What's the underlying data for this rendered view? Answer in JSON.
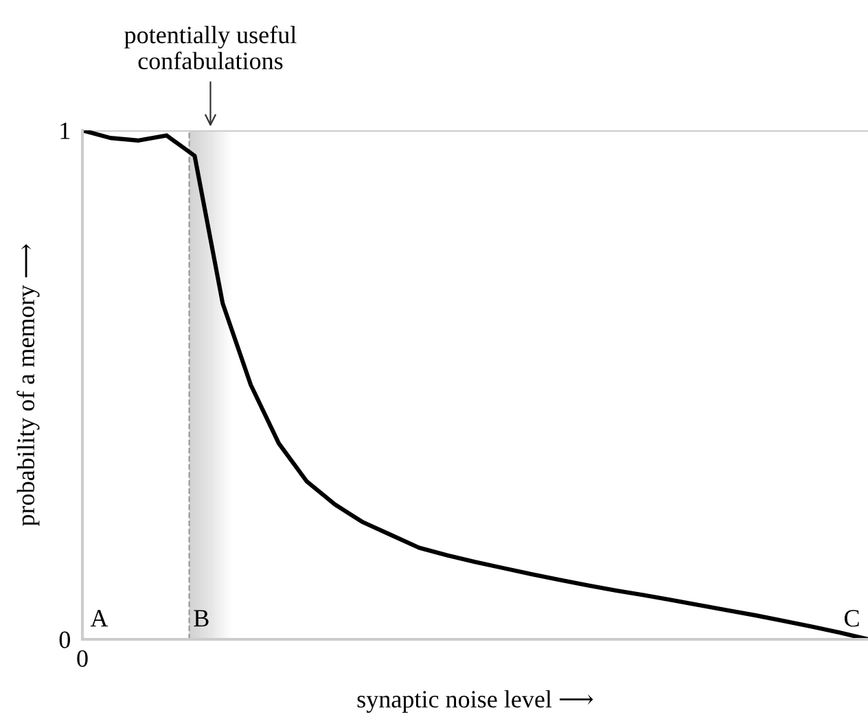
{
  "chart_data": {
    "type": "line",
    "xlabel": "synaptic noise level ⟶",
    "ylabel": "probability of a memory ⟶",
    "categories": [
      null,
      null,
      null,
      null,
      null,
      null,
      null,
      null,
      null,
      null,
      null,
      null,
      null,
      null,
      null,
      null,
      null,
      null,
      null,
      null,
      null,
      null,
      null,
      null,
      null,
      null,
      null,
      null,
      null
    ],
    "series": [
      {
        "color": "#000000",
        "values": [
          1.0,
          0.985,
          0.98,
          0.99,
          0.95,
          0.66,
          0.5,
          0.385,
          0.31,
          0.265,
          0.23,
          0.205,
          0.18,
          0.165,
          0.152,
          0.14,
          0.128,
          0.117,
          0.106,
          0.096,
          0.087,
          0.077,
          0.067,
          0.057,
          0.047,
          0.036,
          0.025,
          0.013,
          0.0
        ]
      }
    ],
    "ylim": [
      0,
      1
    ],
    "yticks": [
      0,
      1
    ],
    "ref_lines": [
      {
        "axis": "y",
        "value": 1,
        "color": "#cccccc",
        "line_style": "solid"
      }
    ],
    "annotations": [
      "potentially useful\nconfabulations",
      "A",
      "B",
      "C",
      "0"
    ],
    "legend": false,
    "marker": "none",
    "line_style": "solid"
  }
}
